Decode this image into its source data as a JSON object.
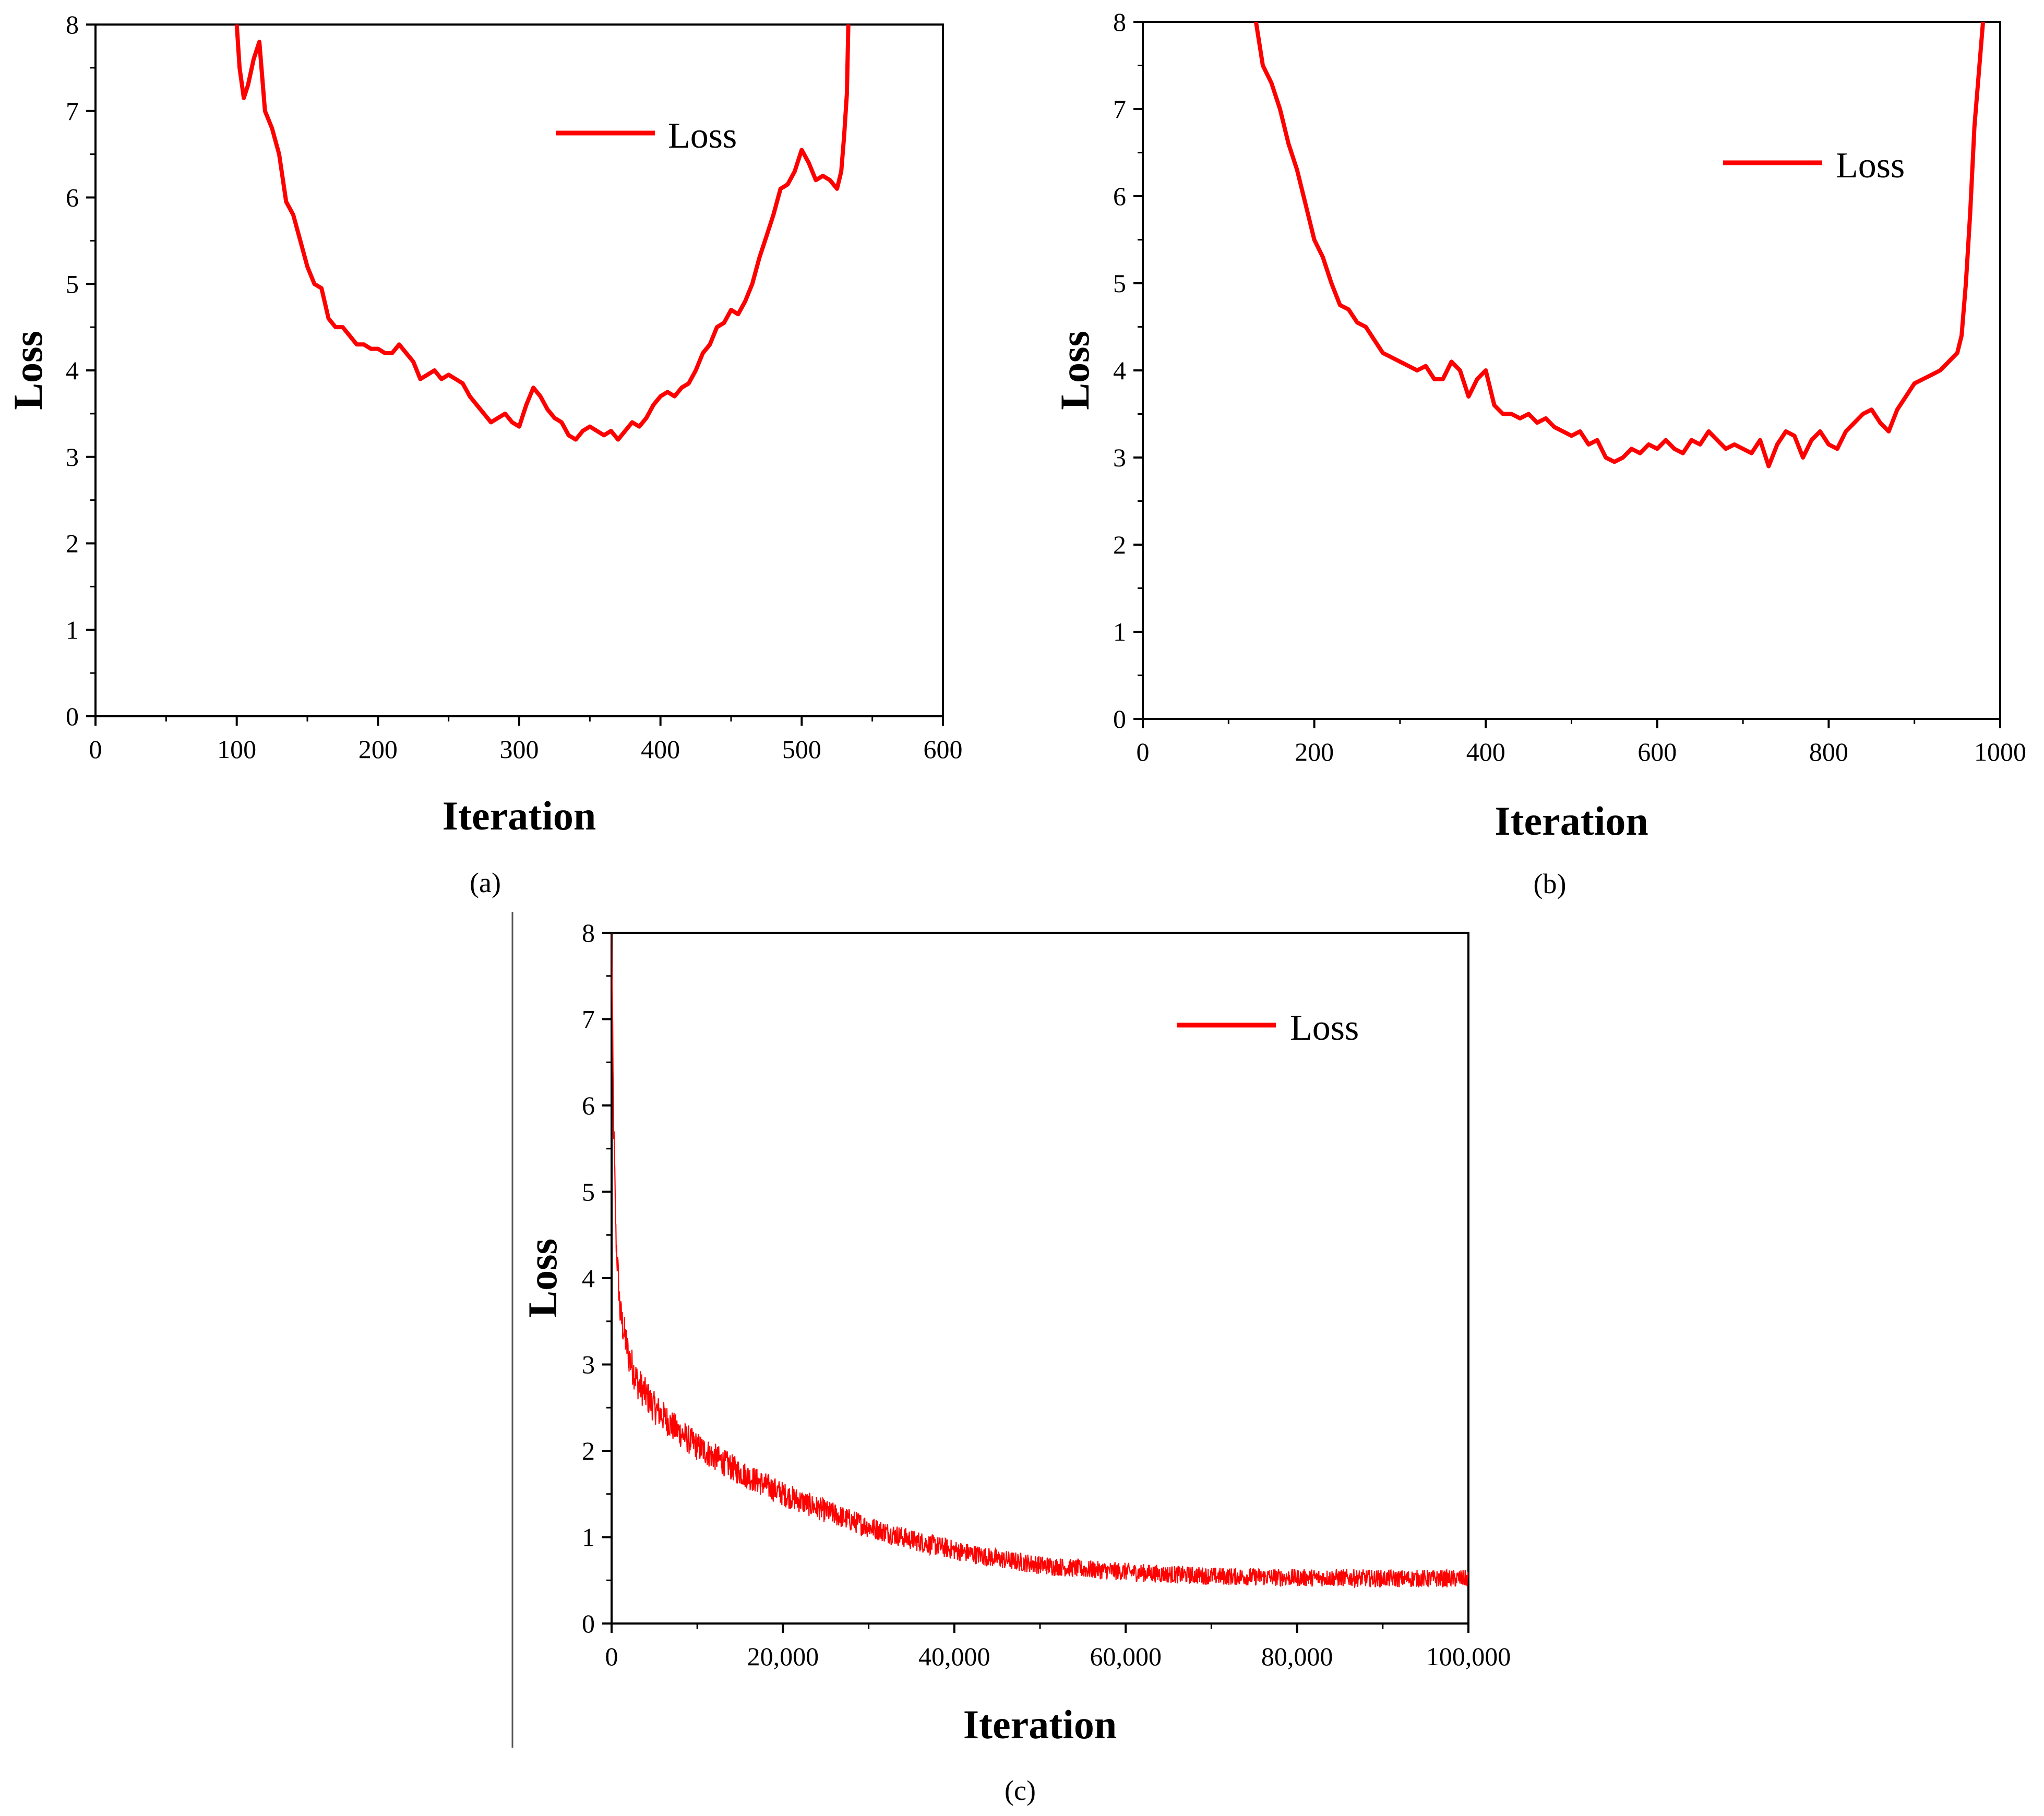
{
  "chart_data": [
    {
      "id": "a",
      "type": "line",
      "panel_label": "(a)",
      "title": "",
      "xlabel": "Iteration",
      "ylabel": "Loss",
      "xlim": [
        0,
        600
      ],
      "ylim": [
        0,
        8
      ],
      "xticks": [
        0,
        100,
        200,
        300,
        400,
        500,
        600
      ],
      "xtick_labels": [
        "0",
        "100",
        "200",
        "300",
        "400",
        "500",
        "600"
      ],
      "yticks": [
        0,
        1,
        2,
        3,
        4,
        5,
        6,
        7,
        8
      ],
      "ytick_labels": [
        "0",
        "1",
        "2",
        "3",
        "4",
        "5",
        "6",
        "7",
        "8"
      ],
      "legend": "top-right",
      "grid": false,
      "series": [
        {
          "name": "Loss",
          "color": "#ff0000",
          "x": [
            100,
            102,
            105,
            108,
            112,
            116,
            120,
            125,
            130,
            135,
            140,
            145,
            150,
            155,
            160,
            165,
            170,
            175,
            180,
            185,
            190,
            195,
            200,
            205,
            210,
            215,
            220,
            225,
            230,
            235,
            240,
            245,
            250,
            255,
            260,
            265,
            270,
            275,
            280,
            285,
            290,
            295,
            300,
            305,
            310,
            315,
            320,
            325,
            330,
            335,
            340,
            345,
            350,
            355,
            360,
            365,
            370,
            375,
            380,
            385,
            390,
            395,
            400,
            405,
            410,
            415,
            420,
            425,
            430,
            435,
            440,
            445,
            450,
            455,
            460,
            465,
            470,
            475,
            480,
            485,
            490,
            495,
            500,
            505,
            510,
            515,
            520,
            525,
            528,
            530,
            532,
            533
          ],
          "values": [
            8.0,
            7.5,
            7.15,
            7.3,
            7.6,
            7.8,
            7.0,
            6.8,
            6.5,
            5.95,
            5.8,
            5.5,
            5.2,
            5.0,
            4.95,
            4.6,
            4.5,
            4.5,
            4.4,
            4.3,
            4.3,
            4.25,
            4.25,
            4.2,
            4.2,
            4.3,
            4.2,
            4.1,
            3.9,
            3.95,
            4.0,
            3.9,
            3.95,
            3.9,
            3.85,
            3.7,
            3.6,
            3.5,
            3.4,
            3.45,
            3.5,
            3.4,
            3.35,
            3.6,
            3.8,
            3.7,
            3.55,
            3.45,
            3.4,
            3.25,
            3.2,
            3.3,
            3.35,
            3.3,
            3.25,
            3.3,
            3.2,
            3.3,
            3.4,
            3.35,
            3.45,
            3.6,
            3.7,
            3.75,
            3.7,
            3.8,
            3.85,
            4.0,
            4.2,
            4.3,
            4.5,
            4.55,
            4.7,
            4.65,
            4.8,
            5.0,
            5.3,
            5.55,
            5.8,
            6.1,
            6.15,
            6.3,
            6.55,
            6.4,
            6.2,
            6.25,
            6.2,
            6.1,
            6.3,
            6.7,
            7.2,
            8.0
          ]
        }
      ]
    },
    {
      "id": "b",
      "type": "line",
      "panel_label": "(b)",
      "title": "",
      "xlabel": "Iteration",
      "ylabel": "Loss",
      "xlim": [
        0,
        1000
      ],
      "ylim": [
        0,
        8
      ],
      "xticks": [
        0,
        200,
        400,
        600,
        800,
        1000
      ],
      "xtick_labels": [
        "0",
        "200",
        "400",
        "600",
        "800",
        "1000"
      ],
      "yticks": [
        0,
        1,
        2,
        3,
        4,
        5,
        6,
        7,
        8
      ],
      "ytick_labels": [
        "0",
        "1",
        "2",
        "3",
        "4",
        "5",
        "6",
        "7",
        "8"
      ],
      "legend": "top-right",
      "grid": false,
      "series": [
        {
          "name": "Loss",
          "color": "#ff0000",
          "x": [
            132,
            140,
            150,
            160,
            170,
            180,
            190,
            200,
            210,
            220,
            230,
            240,
            250,
            260,
            270,
            280,
            290,
            300,
            310,
            320,
            330,
            340,
            350,
            360,
            370,
            380,
            390,
            400,
            410,
            420,
            430,
            440,
            450,
            460,
            470,
            480,
            490,
            500,
            510,
            520,
            530,
            540,
            550,
            560,
            570,
            580,
            590,
            600,
            610,
            620,
            630,
            640,
            650,
            660,
            670,
            680,
            690,
            700,
            710,
            720,
            730,
            740,
            750,
            760,
            770,
            780,
            790,
            800,
            810,
            820,
            830,
            840,
            850,
            860,
            870,
            880,
            890,
            900,
            910,
            920,
            930,
            940,
            950,
            955,
            960,
            965,
            970,
            975,
            980
          ],
          "values": [
            8.0,
            7.5,
            7.3,
            7.0,
            6.6,
            6.3,
            5.9,
            5.5,
            5.3,
            5.0,
            4.75,
            4.7,
            4.55,
            4.5,
            4.35,
            4.2,
            4.15,
            4.1,
            4.05,
            4.0,
            4.05,
            3.9,
            3.9,
            4.1,
            4.0,
            3.7,
            3.9,
            4.0,
            3.6,
            3.5,
            3.5,
            3.45,
            3.5,
            3.4,
            3.45,
            3.35,
            3.3,
            3.25,
            3.3,
            3.15,
            3.2,
            3.0,
            2.95,
            3.0,
            3.1,
            3.05,
            3.15,
            3.1,
            3.2,
            3.1,
            3.05,
            3.2,
            3.15,
            3.3,
            3.2,
            3.1,
            3.15,
            3.1,
            3.05,
            3.2,
            2.9,
            3.15,
            3.3,
            3.25,
            3.0,
            3.2,
            3.3,
            3.15,
            3.1,
            3.3,
            3.4,
            3.5,
            3.55,
            3.4,
            3.3,
            3.55,
            3.7,
            3.85,
            3.9,
            3.95,
            4.0,
            4.1,
            4.2,
            4.4,
            5.0,
            5.8,
            6.8,
            7.4,
            8.0
          ]
        }
      ]
    },
    {
      "id": "c",
      "type": "line",
      "panel_label": "(c)",
      "title": "",
      "xlabel": "Iteration",
      "ylabel": "Loss",
      "xlim": [
        0,
        100000
      ],
      "ylim": [
        0,
        8
      ],
      "xticks": [
        0,
        20000,
        40000,
        60000,
        80000,
        100000
      ],
      "xtick_labels": [
        "0",
        "20,000",
        "40,000",
        "60,000",
        "80,000",
        "100,000"
      ],
      "yticks": [
        0,
        1,
        2,
        3,
        4,
        5,
        6,
        7,
        8
      ],
      "ytick_labels": [
        "0",
        "1",
        "2",
        "3",
        "4",
        "5",
        "6",
        "7",
        "8"
      ],
      "legend": "top-right",
      "grid": false,
      "series": [
        {
          "name": "Loss",
          "color": "#ff0000",
          "x": [
            0,
            200,
            500,
            1000,
            2000,
            3000,
            5000,
            7500,
            10000,
            15000,
            20000,
            25000,
            30000,
            35000,
            40000,
            45000,
            50000,
            55000,
            60000,
            65000,
            70000,
            75000,
            80000,
            85000,
            90000,
            95000,
            100000
          ],
          "values": [
            8.0,
            6.0,
            4.5,
            3.6,
            3.1,
            2.8,
            2.5,
            2.25,
            2.05,
            1.75,
            1.5,
            1.3,
            1.12,
            0.97,
            0.85,
            0.75,
            0.68,
            0.63,
            0.6,
            0.57,
            0.55,
            0.54,
            0.53,
            0.53,
            0.52,
            0.52,
            0.52
          ],
          "noise_amplitude": 0.08
        }
      ]
    }
  ]
}
